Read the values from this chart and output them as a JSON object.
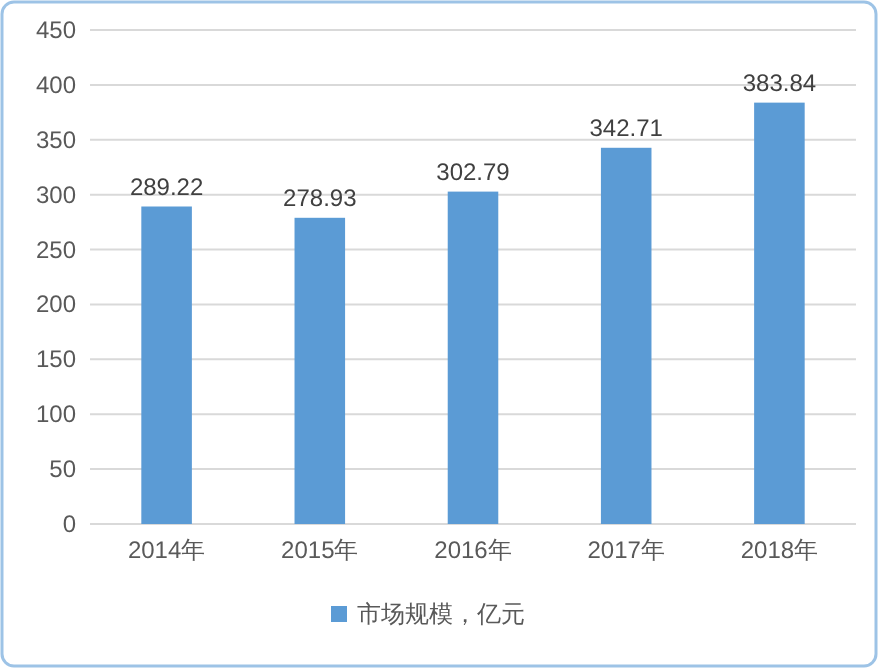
{
  "chart_data": {
    "type": "bar",
    "categories": [
      "2014年",
      "2015年",
      "2016年",
      "2017年",
      "2018年"
    ],
    "series": [
      {
        "name": "市场规模，亿元",
        "color": "#5b9bd5",
        "values": [
          289.22,
          278.93,
          302.79,
          342.71,
          383.84
        ]
      }
    ],
    "ylim": [
      0,
      450
    ],
    "yticks": [
      0,
      50,
      100,
      150,
      200,
      250,
      300,
      350,
      400,
      450
    ],
    "grid": "y",
    "legend": "bottom",
    "data_labels": true
  }
}
